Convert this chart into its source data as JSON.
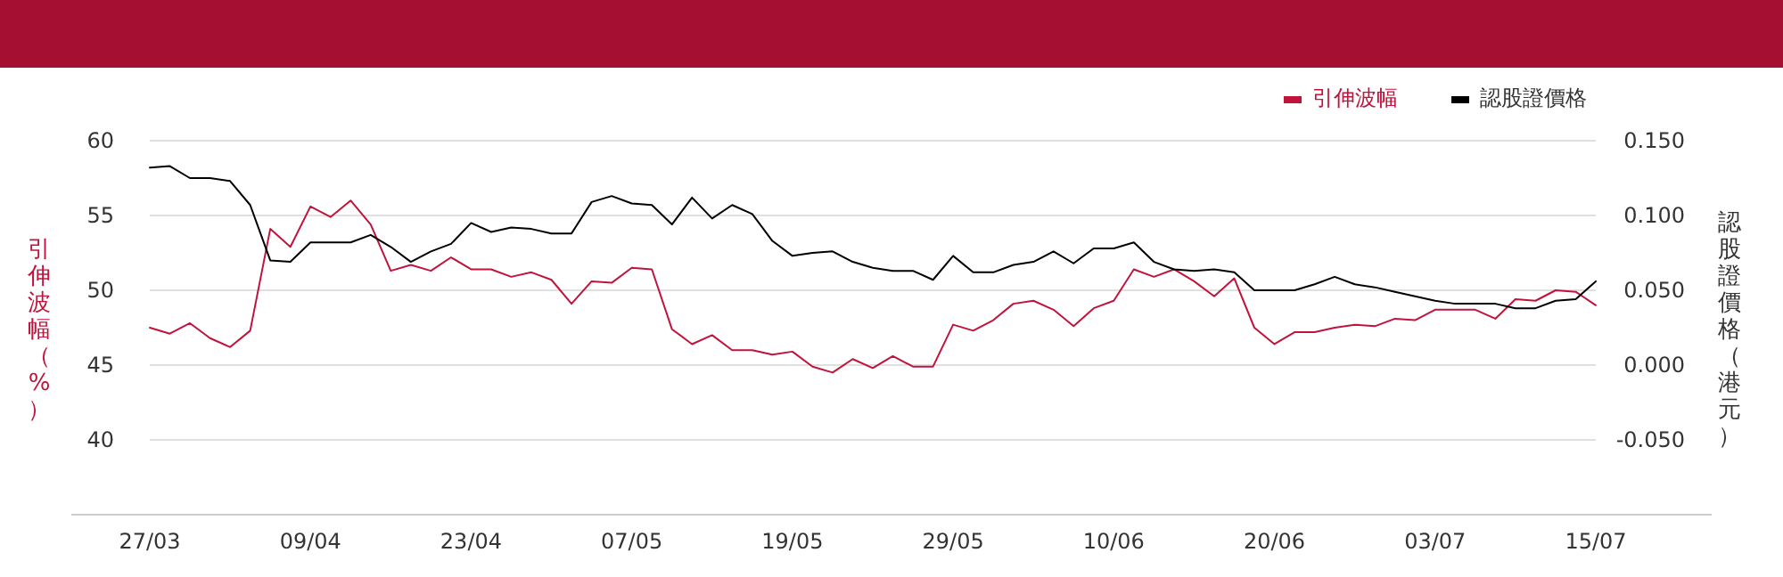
{
  "chart_data": {
    "type": "line",
    "categories": [
      "27/03",
      null,
      null,
      null,
      null,
      null,
      null,
      null,
      "09/04",
      null,
      null,
      null,
      null,
      null,
      null,
      null,
      "23/04",
      null,
      null,
      null,
      null,
      null,
      null,
      null,
      "07/05",
      null,
      null,
      null,
      null,
      null,
      null,
      null,
      "19/05",
      null,
      null,
      null,
      null,
      null,
      null,
      null,
      "29/05",
      null,
      null,
      null,
      null,
      null,
      null,
      null,
      "10/06",
      null,
      null,
      null,
      null,
      null,
      null,
      null,
      "20/06",
      null,
      null,
      null,
      null,
      null,
      null,
      null,
      "03/07",
      null,
      null,
      null,
      null,
      null,
      null,
      null,
      "15/07"
    ],
    "series": [
      {
        "name": "引伸波幅",
        "color": "#c0143c",
        "values": [
          47.5,
          47.1,
          47.8,
          46.8,
          46.2,
          47.3,
          54.1,
          52.9,
          55.6,
          54.9,
          56.0,
          54.4,
          51.3,
          51.7,
          51.3,
          52.2,
          51.4,
          51.4,
          50.9,
          51.2,
          50.7,
          49.1,
          50.6,
          50.5,
          51.5,
          51.4,
          47.4,
          46.4,
          47.0,
          46.0,
          46.0,
          45.7,
          45.9,
          44.9,
          44.5,
          45.4,
          44.8,
          45.6,
          44.9,
          44.9,
          47.7,
          47.3,
          48.0,
          49.1,
          49.3,
          48.7,
          47.6,
          48.8,
          49.3,
          51.4,
          50.9,
          51.4,
          50.6,
          49.6,
          50.8,
          47.5,
          46.4,
          47.2,
          47.2,
          47.5,
          47.7,
          47.6,
          48.1,
          48.0,
          48.7,
          48.7,
          48.7,
          48.1,
          49.4,
          49.3,
          50.0,
          49.9,
          49.0
        ]
      },
      {
        "name": "認股證價格",
        "color": "#000000",
        "axis": "y2",
        "values": [
          0.132,
          0.133,
          0.125,
          0.125,
          0.123,
          0.107,
          0.07,
          0.069,
          0.082,
          0.082,
          0.082,
          0.087,
          0.079,
          0.069,
          0.076,
          0.081,
          0.095,
          0.089,
          0.092,
          0.091,
          0.088,
          0.088,
          0.109,
          0.113,
          0.108,
          0.107,
          0.094,
          0.112,
          0.098,
          0.107,
          0.101,
          0.083,
          0.073,
          0.075,
          0.076,
          0.069,
          0.065,
          0.063,
          0.063,
          0.057,
          0.073,
          0.062,
          0.062,
          0.067,
          0.069,
          0.076,
          0.068,
          0.078,
          0.078,
          0.082,
          0.069,
          0.064,
          0.063,
          0.064,
          0.062,
          0.05,
          0.05,
          0.05,
          0.054,
          0.059,
          0.054,
          0.052,
          0.049,
          0.046,
          0.043,
          0.041,
          0.041,
          0.041,
          0.038,
          0.038,
          0.043,
          0.044,
          0.056
        ]
      }
    ],
    "ylabel": "引伸波幅（%）",
    "y2label": "認股證價格（港元）",
    "ylim": [
      35,
      60
    ],
    "yticks": [
      40,
      45,
      50,
      55,
      60
    ],
    "y2lim": [
      -0.1,
      0.15
    ],
    "y2ticks": [
      {
        "value": -0.05,
        "label": "-0.050"
      },
      {
        "value": 0,
        "label": "0.000"
      },
      {
        "value": 0.05,
        "label": "0.050"
      },
      {
        "value": 0.1,
        "label": "0.100"
      },
      {
        "value": 0.15,
        "label": "0.150"
      }
    ],
    "grid": "y",
    "legend": "top right",
    "line_style": "solid",
    "marker": "none"
  }
}
